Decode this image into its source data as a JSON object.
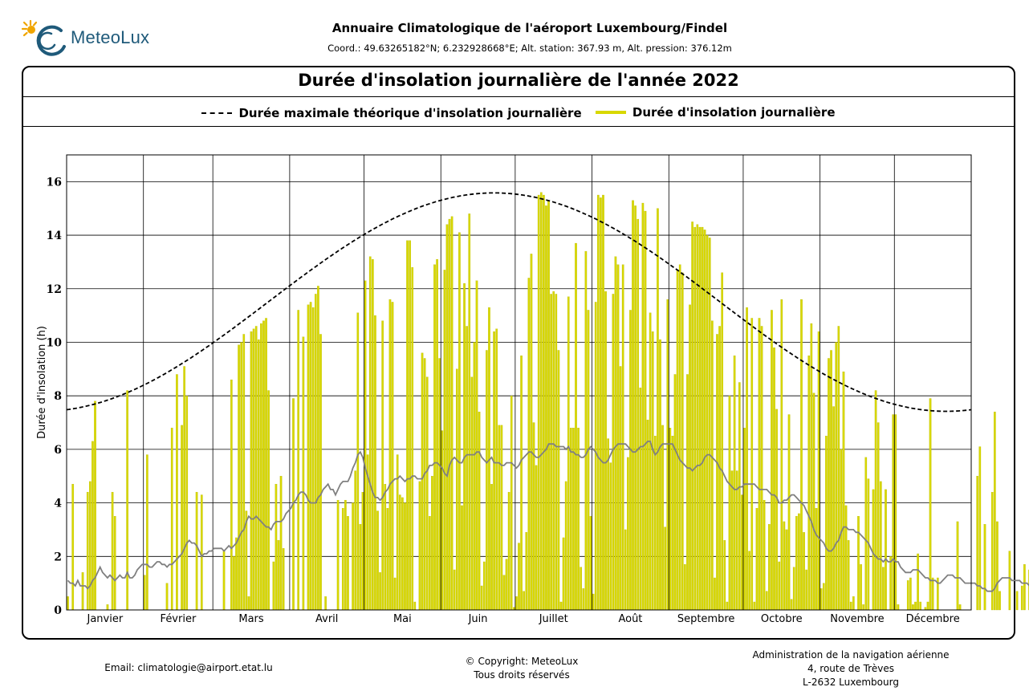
{
  "header": {
    "logo_text": "MeteoLux",
    "title": "Annuaire Climatologique de l'aéroport Luxembourg/Findel",
    "coordinates": "Coord.: 49.63265182°N; 6.232928668°E; Alt. station: 367.93 m, Alt. pression: 376.12m"
  },
  "chart_data": {
    "type": "bar",
    "title": "Durée d'insolation journalière de l'année 2022",
    "xlabel": "",
    "ylabel": "Durée d'insolation (h)",
    "ylim": [
      0,
      17
    ],
    "yticks": [
      0,
      2,
      4,
      6,
      8,
      10,
      12,
      14,
      16
    ],
    "grid": true,
    "legend_position": "top",
    "months": [
      "Janvier",
      "Février",
      "Mars",
      "Avril",
      "Mai",
      "Juin",
      "Juillet",
      "Août",
      "Septembre",
      "Octobre",
      "Novembre",
      "Décembre"
    ],
    "month_lengths": [
      31,
      28,
      31,
      30,
      31,
      30,
      31,
      31,
      30,
      31,
      30,
      31
    ],
    "colors": {
      "bars": "#d8d800",
      "bar_edge": "#b8b800",
      "max_line": "#000000",
      "average_line": "#808080"
    },
    "series": [
      {
        "name": "Durée maximale théorique d'insolation journalière",
        "kind": "dashed-line",
        "min_value": 7.42,
        "min_day": 355,
        "max_value": 15.58
      },
      {
        "name": "Durée d'insolation journalière",
        "kind": "bar",
        "values": [
          0.5,
          0.0,
          4.7,
          0.0,
          0.0,
          0.0,
          1.4,
          0.0,
          4.4,
          4.8,
          6.3,
          7.8,
          0.0,
          0.0,
          0.0,
          0.0,
          0.2,
          0.0,
          4.4,
          3.5,
          0.0,
          0.0,
          0.0,
          0.0,
          8.2,
          0.0,
          0.0,
          0.0,
          0.0,
          0.0,
          0.0,
          1.3,
          5.8,
          0.0,
          0.0,
          0.0,
          0.0,
          0.0,
          0.0,
          0.0,
          1.0,
          0.0,
          6.8,
          0.0,
          8.8,
          0.0,
          6.9,
          9.1,
          8.0,
          0.0,
          0.0,
          0.0,
          4.4,
          0.0,
          4.3,
          0.0,
          0.0,
          0.0,
          0.0,
          0.0,
          0.0,
          0.0,
          0.0,
          2.2,
          0.0,
          0.0,
          8.6,
          2.0,
          2.7,
          9.9,
          10.0,
          10.3,
          3.7,
          0.5,
          10.4,
          10.5,
          10.6,
          10.1,
          10.7,
          10.8,
          10.9,
          8.2,
          0.0,
          1.8,
          4.7,
          2.6,
          5.0,
          2.3,
          0.0,
          0.0,
          0.0,
          7.9,
          0.0,
          11.2,
          0.0,
          10.2,
          0.0,
          11.4,
          11.5,
          11.3,
          11.8,
          12.1,
          10.3,
          0.0,
          0.5,
          0.0,
          0.0,
          0.0,
          0.0,
          4.1,
          0.0,
          3.8,
          4.1,
          3.5,
          0.0,
          4.0,
          5.2,
          11.1,
          3.2,
          4.4,
          12.3,
          5.8,
          13.2,
          13.1,
          11.0,
          3.7,
          1.4,
          10.8,
          4.7,
          3.8,
          11.6,
          11.5,
          1.2,
          5.8,
          4.3,
          4.2,
          4.0,
          13.8,
          13.8,
          12.8,
          0.3,
          0.0,
          4.8,
          9.6,
          9.4,
          8.7,
          3.5,
          5.0,
          12.9,
          13.1,
          9.4,
          6.7,
          12.7,
          14.4,
          14.6,
          14.7,
          1.5,
          9.0,
          14.1,
          3.9,
          12.2,
          10.6,
          14.8,
          8.7,
          10.0,
          12.3,
          7.4,
          0.9,
          1.8,
          9.7,
          11.3,
          4.7,
          10.4,
          10.5,
          6.9,
          6.9,
          1.3,
          1.9,
          4.4,
          8.0,
          0.1,
          0.5,
          2.5,
          9.5,
          0.7,
          2.9,
          12.4,
          13.3,
          7.0,
          5.4,
          15.5,
          15.6,
          15.5,
          15.1,
          15.3,
          11.8,
          11.9,
          11.8,
          9.7,
          0.3,
          2.7,
          4.8,
          11.7,
          6.8,
          6.8,
          13.7,
          6.8,
          1.6,
          0.8,
          13.4,
          11.2,
          3.5,
          0.6,
          11.5,
          15.5,
          15.4,
          15.5,
          11.9,
          6.4,
          5.5,
          11.8,
          13.2,
          12.9,
          9.1,
          12.9,
          3.0,
          5.7,
          11.2,
          15.3,
          15.1,
          14.6,
          8.3,
          15.2,
          14.9,
          7.1,
          11.1,
          10.4,
          6.5,
          15.0,
          10.1,
          6.9,
          3.1,
          11.6,
          6.8,
          6.5,
          8.8,
          12.7,
          12.9,
          12.6,
          1.7,
          8.8,
          11.4,
          14.5,
          14.3,
          14.4,
          14.3,
          14.3,
          14.2,
          14.0,
          13.9,
          10.8,
          1.2,
          10.3,
          10.6,
          12.6,
          2.6,
          0.3,
          8.0,
          5.2,
          9.5,
          5.2,
          8.5,
          4.3,
          6.8,
          11.3,
          2.2,
          10.9,
          0.3,
          3.8,
          10.9,
          10.6,
          4.1,
          0.7,
          3.2,
          11.2,
          9.8,
          7.5,
          1.8,
          11.6,
          3.3,
          3.0,
          7.3,
          0.4,
          1.6,
          3.5,
          3.6,
          11.6,
          2.9,
          1.5,
          9.5,
          10.7,
          8.1,
          3.8,
          10.4,
          0.8,
          1.0,
          6.5,
          9.4,
          9.7,
          7.6,
          10.0,
          10.6,
          6.0,
          8.9,
          3.9,
          2.6,
          0.3,
          0.5,
          0.0,
          3.5,
          1.7,
          0.2,
          5.7,
          4.9,
          0.0,
          4.5,
          8.2,
          7.0,
          4.8,
          1.6,
          4.5,
          0.0,
          2.0,
          7.3,
          7.3,
          0.2,
          0.0,
          0.0,
          0.0,
          1.1,
          1.2,
          0.2,
          0.3,
          2.1,
          0.3,
          0.0,
          0.1,
          0.3,
          7.9,
          1.2,
          0.0,
          1.2,
          0.0,
          0.0,
          0.0,
          0.0,
          0.0,
          0.0,
          0.0,
          3.3,
          0.2,
          0.0,
          0.0,
          0.0,
          0.0,
          0.0,
          0.0,
          5.0,
          6.1,
          0.0,
          3.2,
          0.0,
          0.0,
          4.4,
          7.4,
          3.3,
          0.7,
          0.0,
          0.0,
          0.0,
          2.2,
          0.0,
          0.0,
          0.7,
          0.0,
          0.9,
          1.7,
          0.0,
          1.5,
          0.4
        ]
      },
      {
        "name": "",
        "kind": "line",
        "values": [
          1.1,
          1.0,
          1.0,
          0.9,
          1.1,
          0.9,
          0.9,
          0.9,
          0.8,
          0.9,
          1.1,
          1.2,
          1.4,
          1.6,
          1.4,
          1.3,
          1.2,
          1.3,
          1.2,
          1.1,
          1.2,
          1.3,
          1.2,
          1.2,
          1.4,
          1.2,
          1.2,
          1.3,
          1.5,
          1.6,
          1.7,
          1.7,
          1.7,
          1.6,
          1.6,
          1.7,
          1.8,
          1.8,
          1.7,
          1.7,
          1.6,
          1.7,
          1.7,
          1.8,
          1.9,
          2.0,
          2.1,
          2.3,
          2.5,
          2.6,
          2.5,
          2.5,
          2.4,
          2.2,
          2.0,
          2.1,
          2.1,
          2.2,
          2.2,
          2.3,
          2.3,
          2.3,
          2.3,
          2.2,
          2.3,
          2.4,
          2.3,
          2.4,
          2.5,
          2.7,
          2.9,
          3.0,
          3.3,
          3.5,
          3.4,
          3.4,
          3.5,
          3.4,
          3.3,
          3.2,
          3.1,
          3.1,
          3.0,
          3.2,
          3.3,
          3.3,
          3.3,
          3.4,
          3.6,
          3.7,
          3.8,
          4.0,
          4.1,
          4.3,
          4.4,
          4.4,
          4.3,
          4.1,
          4.0,
          4.0,
          4.0,
          4.2,
          4.3,
          4.5,
          4.6,
          4.7,
          4.5,
          4.5,
          4.3,
          4.5,
          4.7,
          4.8,
          4.8,
          4.8,
          5.0,
          5.3,
          5.5,
          5.8,
          5.9,
          5.7,
          5.3,
          5.0,
          4.7,
          4.4,
          4.2,
          4.2,
          4.1,
          4.2,
          4.4,
          4.5,
          4.7,
          4.8,
          4.9,
          4.9,
          5.0,
          4.9,
          4.8,
          4.9,
          4.9,
          5.0,
          5.0,
          4.9,
          4.9,
          4.9,
          5.1,
          5.2,
          5.4,
          5.4,
          5.5,
          5.5,
          5.4,
          5.3,
          5.1,
          5.0,
          5.4,
          5.6,
          5.7,
          5.6,
          5.5,
          5.5,
          5.7,
          5.8,
          5.8,
          5.8,
          5.8,
          5.9,
          5.9,
          5.7,
          5.6,
          5.5,
          5.6,
          5.7,
          5.5,
          5.5,
          5.5,
          5.4,
          5.4,
          5.5,
          5.5,
          5.5,
          5.4,
          5.3,
          5.4,
          5.6,
          5.7,
          5.8,
          5.9,
          5.9,
          5.8,
          5.7,
          5.7,
          5.8,
          5.9,
          6.0,
          6.2,
          6.2,
          6.2,
          6.1,
          6.1,
          6.1,
          6.1,
          6.0,
          6.1,
          5.9,
          5.9,
          5.8,
          5.8,
          5.7,
          5.7,
          5.8,
          6.0,
          6.1,
          6.0,
          5.9,
          5.7,
          5.6,
          5.5,
          5.5,
          5.6,
          5.8,
          6.0,
          6.1,
          6.2,
          6.2,
          6.2,
          6.2,
          6.1,
          6.0,
          5.9,
          5.9,
          6.0,
          6.1,
          6.1,
          6.2,
          6.3,
          6.3,
          6.0,
          5.8,
          5.9,
          6.1,
          6.2,
          6.2,
          6.2,
          6.2,
          6.2,
          6.0,
          5.8,
          5.6,
          5.5,
          5.4,
          5.3,
          5.3,
          5.2,
          5.3,
          5.4,
          5.4,
          5.5,
          5.7,
          5.8,
          5.8,
          5.7,
          5.6,
          5.5,
          5.3,
          5.2,
          5.0,
          4.8,
          4.7,
          4.6,
          4.5,
          4.5,
          4.6,
          4.6,
          4.7,
          4.7,
          4.7,
          4.7,
          4.7,
          4.6,
          4.5,
          4.5,
          4.5,
          4.5,
          4.4,
          4.3,
          4.3,
          4.2,
          4.0,
          4.0,
          4.1,
          4.1,
          4.2,
          4.3,
          4.3,
          4.2,
          4.1,
          4.0,
          3.9,
          3.7,
          3.5,
          3.3,
          3.0,
          2.8,
          2.7,
          2.6,
          2.5,
          2.3,
          2.2,
          2.2,
          2.3,
          2.5,
          2.6,
          2.9,
          3.1,
          3.1,
          3.0,
          3.0,
          3.0,
          2.9,
          2.9,
          2.8,
          2.7,
          2.6,
          2.5,
          2.3,
          2.1,
          2.0,
          1.9,
          1.9,
          1.8,
          1.9,
          1.8,
          1.8,
          1.9,
          1.8,
          1.8,
          1.6,
          1.5,
          1.4,
          1.4,
          1.4,
          1.5,
          1.5,
          1.5,
          1.4,
          1.3,
          1.2,
          1.2,
          1.1,
          1.1,
          1.1,
          1.0,
          1.0,
          1.1,
          1.2,
          1.3,
          1.3,
          1.3,
          1.2,
          1.2,
          1.2,
          1.1,
          1.0,
          1.0,
          1.0,
          1.0,
          1.0,
          0.9,
          0.9,
          0.8,
          0.8,
          0.7,
          0.7,
          0.7,
          0.8,
          1.0,
          1.1,
          1.2,
          1.2,
          1.2,
          1.2,
          1.1,
          1.1,
          1.1,
          1.1,
          1.0,
          1.0,
          1.0,
          0.9,
          0.9,
          0.8,
          0.7,
          0.8,
          0.9,
          0.9,
          1.0,
          1.0,
          1.1,
          1.2,
          1.1,
          1.1,
          1.1
        ]
      }
    ]
  },
  "footer": {
    "email": "Email: climatologie@airport.etat.lu",
    "copyright_line1": "© Copyright: MeteoLux",
    "copyright_line2": "Tous droits réservés",
    "admin_line1": "Administration de la navigation aérienne",
    "admin_line2": "4, route de Trèves",
    "admin_line3": "L-2632 Luxembourg"
  }
}
